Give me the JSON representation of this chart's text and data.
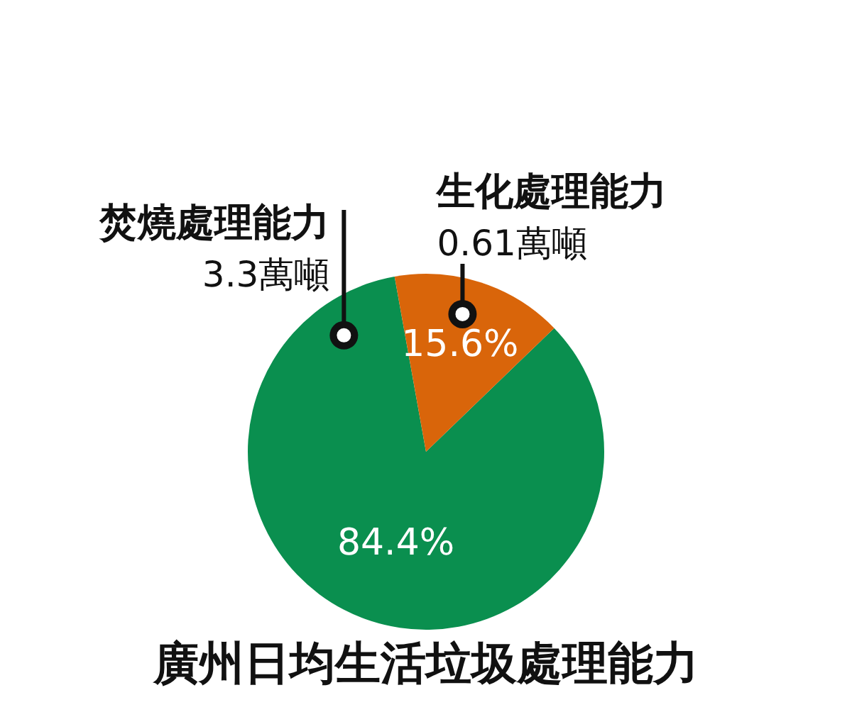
{
  "chart_data": {
    "type": "pie",
    "title": "廣州日均生活垃圾處理能力",
    "categories": [
      "焚燒處理能力",
      "生化處理能力"
    ],
    "values": [
      84.4,
      15.6
    ],
    "colors": [
      "#0a8f4f",
      "#d9650a"
    ],
    "value_labels": [
      "84.4%",
      "15.6%"
    ],
    "annotations": [
      {
        "text": "3.3萬噸",
        "x": "焚燒處理能力"
      },
      {
        "text": "0.61萬噸",
        "x": "生化處理能力"
      }
    ],
    "legend": false
  }
}
